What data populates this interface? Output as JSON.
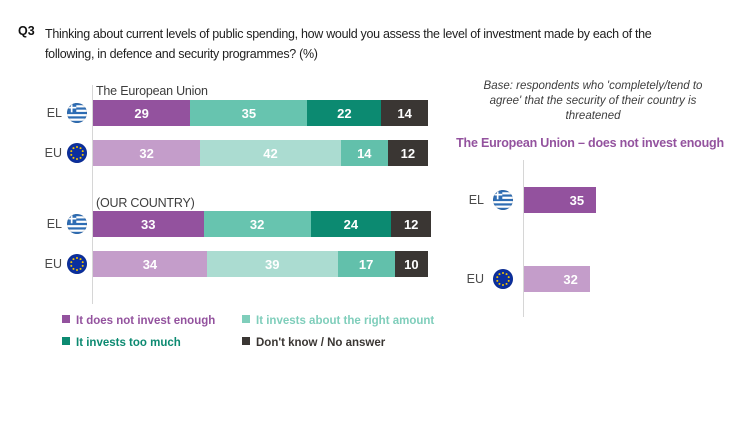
{
  "question": {
    "code": "Q3",
    "text": "Thinking about current levels of public spending, how would you assess the level of investment made by each of the\nfollowing, in defence and security programmes? (%)"
  },
  "right_panel": {
    "base_note": "Base: respondents who 'completely/tend to\nagree' that the security of their country is\nthreatened"
  },
  "legend": {
    "items": [
      {
        "label": "It does not invest enough",
        "color": "#93529e"
      },
      {
        "label": "It invests about the right amount",
        "color": "#7fcebb"
      },
      {
        "label": "It invests too much",
        "color": "#0c8a71"
      },
      {
        "label": "Don't know / No answer",
        "color": "#3a3633"
      }
    ]
  },
  "palettes": {
    "strong": [
      "#93529e",
      "#67c4af",
      "#0c8a71",
      "#3a3633"
    ],
    "light": [
      "#c49dca",
      "#abdcd1",
      "#62c0ab",
      "#3a3633"
    ]
  },
  "flags": {
    "greece_blue": "#2e6db4",
    "eu_blue": "#0b2f9e",
    "eu_star": "#f4c400"
  },
  "chart_data": [
    {
      "type": "stacked_bar",
      "title": "The European Union",
      "unit": "%",
      "xlim": [
        0,
        100
      ],
      "categories": [
        "It does not invest enough",
        "It invests about the right amount",
        "It invests too much",
        "Don't know / No answer"
      ],
      "series": [
        {
          "name": "EL",
          "flag": "greece",
          "palette": "strong",
          "values": [
            29,
            35,
            22,
            14
          ]
        },
        {
          "name": "EU",
          "flag": "eu",
          "palette": "light",
          "values": [
            32,
            42,
            14,
            12
          ]
        }
      ]
    },
    {
      "type": "stacked_bar",
      "title": "(OUR COUNTRY)",
      "unit": "%",
      "xlim": [
        0,
        100
      ],
      "categories": [
        "It does not invest enough",
        "It invests about the right amount",
        "It invests too much",
        "Don't know / No answer"
      ],
      "series": [
        {
          "name": "EL",
          "flag": "greece",
          "palette": "strong",
          "values": [
            33,
            32,
            24,
            12
          ]
        },
        {
          "name": "EU",
          "flag": "eu",
          "palette": "light",
          "values": [
            34,
            39,
            17,
            10
          ]
        }
      ]
    },
    {
      "type": "bar",
      "title": "The European Union – does not invest enough",
      "unit": "%",
      "xlim": [
        0,
        100
      ],
      "categories": [
        "EL",
        "EU"
      ],
      "flags": [
        "greece",
        "eu"
      ],
      "values": [
        35,
        32
      ],
      "bar_colors": [
        "#93529e",
        "#c49dca"
      ]
    }
  ]
}
